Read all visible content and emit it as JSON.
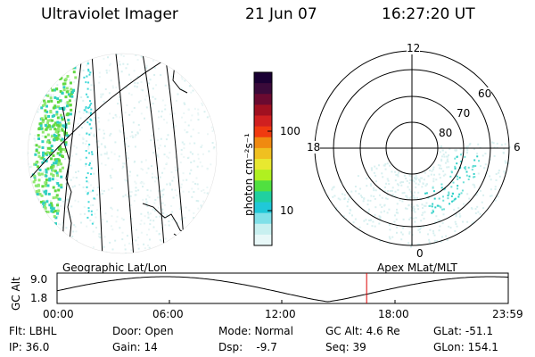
{
  "header": {
    "instrument": "Ultraviolet Imager",
    "date": "21 Jun 07",
    "time": "16:27:20 UT"
  },
  "colorbar": {
    "label": "photon cm⁻²s⁻¹",
    "ticks": [
      "100",
      "10"
    ],
    "colors": [
      "#1a0033",
      "#3a0a3a",
      "#6a0a30",
      "#a01020",
      "#d02020",
      "#f03a10",
      "#f08a10",
      "#f0c020",
      "#e8e830",
      "#b0f020",
      "#50e040",
      "#20d0a0",
      "#20c8d8",
      "#80e0e8",
      "#c8f0f0",
      "#e8f8f8"
    ]
  },
  "geo_panel": {
    "label": "Geographic Lat/Lon"
  },
  "polar_panel": {
    "label": "Apex MLat/MLT",
    "mlt_labels": [
      "12",
      "18",
      "6",
      "0"
    ],
    "lat_labels": [
      "60",
      "70",
      "80"
    ]
  },
  "altitude_plot": {
    "axis_label": "GC Alt",
    "y_ticks": [
      "9.0",
      "1.8"
    ],
    "x_ticks": [
      "00:00",
      "06:00",
      "12:00",
      "18:00",
      "23:59"
    ],
    "current_time_marker_color": "#dd0000"
  },
  "status": {
    "row1": [
      "Flt: LBHL",
      "Door: Open",
      "Mode: Normal",
      "GC Alt: 4.6 Re",
      "GLat: -51.1"
    ],
    "row2": [
      "IP: 36.0",
      "Gain: 14",
      "Dsp:    -9.7",
      "Seq: 39",
      "GLon: 154.1"
    ]
  }
}
